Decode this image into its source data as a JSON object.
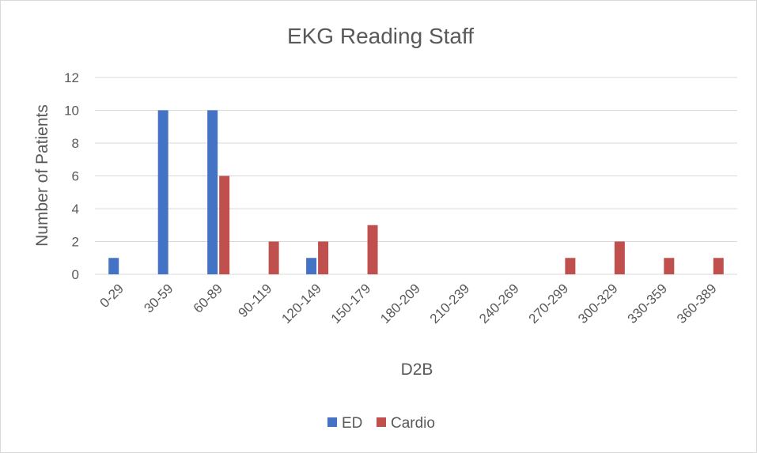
{
  "chart_data": {
    "type": "bar",
    "title": "EKG Reading Staff",
    "xlabel": "D2B",
    "ylabel": "Number of Patients",
    "categories": [
      "0-29",
      "30-59",
      "60-89",
      "90-119",
      "120-149",
      "150-179",
      "180-209",
      "210-239",
      "240-269",
      "270-299",
      "300-329",
      "330-359",
      "360-389"
    ],
    "series": [
      {
        "name": "ED",
        "color": "#4472c4",
        "values": [
          1,
          10,
          10,
          0,
          1,
          0,
          0,
          0,
          0,
          0,
          0,
          0,
          0
        ]
      },
      {
        "name": "Cardio",
        "color": "#c0504d",
        "values": [
          0,
          0,
          6,
          2,
          2,
          3,
          0,
          0,
          0,
          1,
          2,
          1,
          1
        ]
      }
    ],
    "ylim": [
      0,
      12
    ],
    "yticks": [
      "0",
      "2",
      "4",
      "6",
      "8",
      "10",
      "12"
    ],
    "grid": true,
    "legend_position": "bottom"
  }
}
